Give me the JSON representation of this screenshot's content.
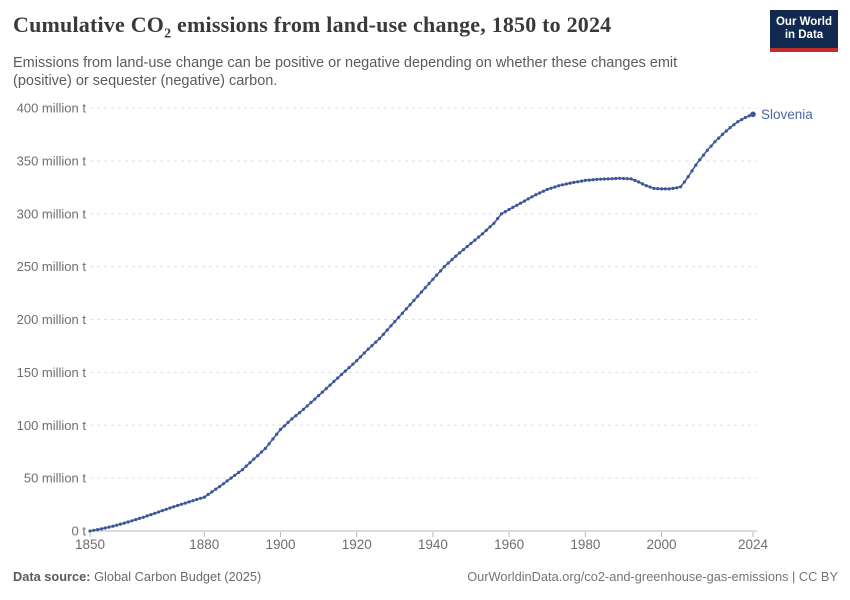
{
  "header": {
    "title_pre": "Cumulative CO",
    "title_sub": "2",
    "title_post": " emissions from land-use change, 1850 to 2024",
    "subtitle": "Emissions from land-use change can be positive or negative depending on whether these changes emit (positive) or sequester (negative) carbon."
  },
  "logo": {
    "line1": "Our World",
    "line2": "in Data"
  },
  "chart_data": {
    "type": "line",
    "title": "Cumulative CO₂ emissions from land-use change, 1850 to 2024",
    "unit": "million t",
    "xlim": [
      1850,
      2024
    ],
    "ylim": [
      0,
      400
    ],
    "grid": "dashed-horizontal",
    "marker_interval_years": 1,
    "x_ticks": [
      1850,
      1880,
      1900,
      1920,
      1940,
      1960,
      1980,
      2000,
      2024
    ],
    "y_ticks": [
      {
        "value": 0,
        "label": "0 t"
      },
      {
        "value": 50,
        "label": "50 million t"
      },
      {
        "value": 100,
        "label": "100 million t"
      },
      {
        "value": 150,
        "label": "150 million t"
      },
      {
        "value": 200,
        "label": "200 million t"
      },
      {
        "value": 250,
        "label": "250 million t"
      },
      {
        "value": 300,
        "label": "300 million t"
      },
      {
        "value": 350,
        "label": "350 million t"
      },
      {
        "value": 400,
        "label": "400 million t"
      }
    ],
    "series": [
      {
        "name": "Slovenia",
        "color": "#4c65a3",
        "marker_color": "#3e5698",
        "anchors": [
          [
            1850,
            0
          ],
          [
            1853,
            2
          ],
          [
            1856,
            4.5
          ],
          [
            1860,
            8.5
          ],
          [
            1864,
            13
          ],
          [
            1868,
            18
          ],
          [
            1872,
            23
          ],
          [
            1876,
            27.5
          ],
          [
            1880,
            32
          ],
          [
            1884,
            42
          ],
          [
            1887,
            50
          ],
          [
            1890,
            58
          ],
          [
            1893,
            68
          ],
          [
            1896,
            78
          ],
          [
            1900,
            96
          ],
          [
            1903,
            106
          ],
          [
            1906,
            115
          ],
          [
            1910,
            128
          ],
          [
            1913,
            138
          ],
          [
            1916,
            148
          ],
          [
            1920,
            161
          ],
          [
            1923,
            172
          ],
          [
            1926,
            182
          ],
          [
            1930,
            198
          ],
          [
            1934,
            214
          ],
          [
            1937,
            226
          ],
          [
            1940,
            238
          ],
          [
            1943,
            250
          ],
          [
            1946,
            260
          ],
          [
            1950,
            272
          ],
          [
            1953,
            281
          ],
          [
            1956,
            291
          ],
          [
            1958,
            300
          ],
          [
            1961,
            306
          ],
          [
            1964,
            312
          ],
          [
            1967,
            318
          ],
          [
            1970,
            323
          ],
          [
            1973,
            326.5
          ],
          [
            1976,
            329
          ],
          [
            1980,
            331.5
          ],
          [
            1983,
            332.5
          ],
          [
            1986,
            333
          ],
          [
            1989,
            333.5
          ],
          [
            1992,
            333
          ],
          [
            1994,
            330
          ],
          [
            1996,
            326.5
          ],
          [
            1998,
            324
          ],
          [
            2000,
            323.5
          ],
          [
            2002,
            323.5
          ],
          [
            2004,
            324.5
          ],
          [
            2005,
            325.5
          ],
          [
            2006,
            330
          ],
          [
            2007,
            335
          ],
          [
            2008,
            340.5
          ],
          [
            2009,
            346
          ],
          [
            2010,
            351
          ],
          [
            2012,
            360
          ],
          [
            2014,
            368
          ],
          [
            2016,
            375
          ],
          [
            2018,
            381.5
          ],
          [
            2020,
            387
          ],
          [
            2022,
            391
          ],
          [
            2024,
            394
          ]
        ]
      }
    ]
  },
  "footer": {
    "datasource_label": "Data source:",
    "datasource_value": "Global Carbon Budget (2025)",
    "credit": "OurWorldinData.org/co2-and-greenhouse-gas-emissions | CC BY"
  }
}
